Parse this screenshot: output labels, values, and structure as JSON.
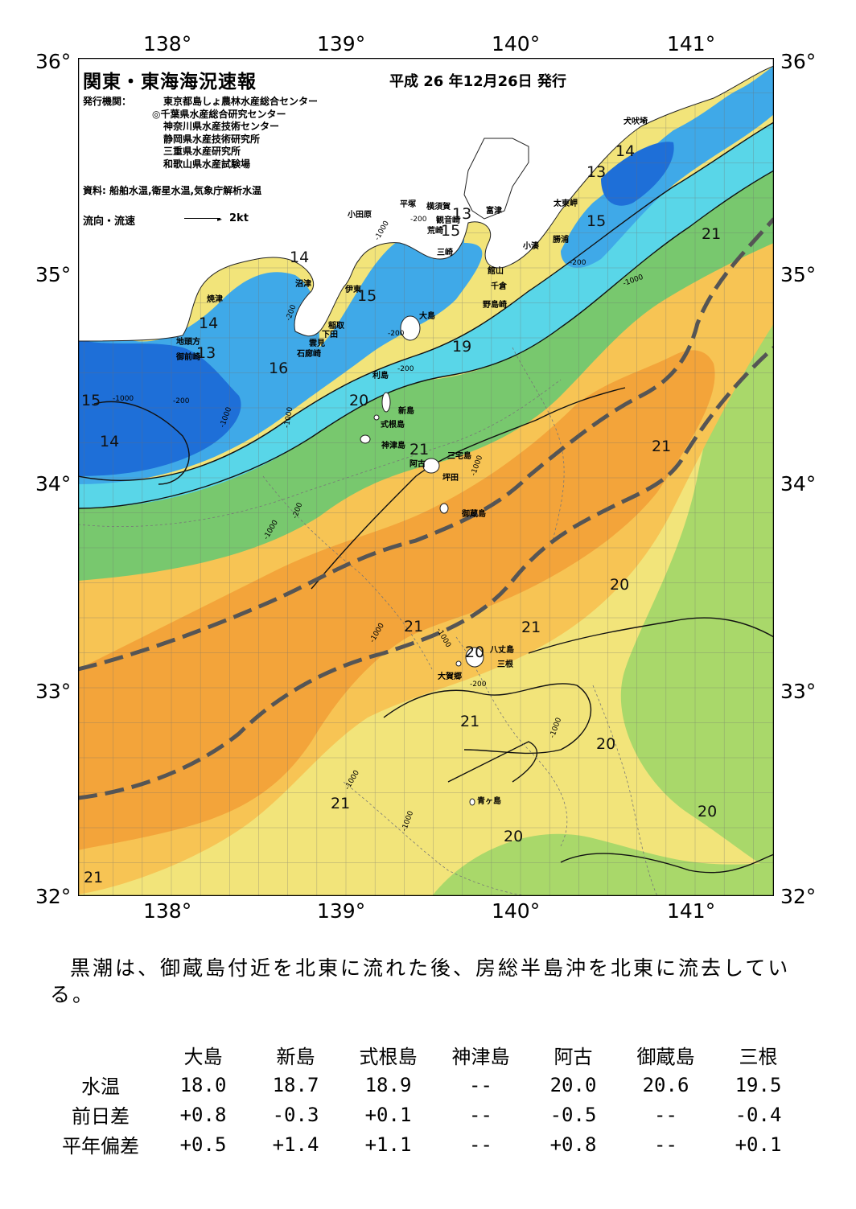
{
  "map": {
    "title": "関東・東海海況速報",
    "issue_date": "平成 26 年12月26日 発行",
    "agencies_header": "発行機関：",
    "agencies": [
      "東京都島しょ農林水産総合センター",
      "◎千葉県水産総合研究センター",
      "神奈川県水産技術センター",
      "静岡県水産技術研究所",
      "三重県水産研究所",
      "和歌山県水産試験場"
    ],
    "source": "資料: 船舶水温,衛星水温,気象庁解析水温",
    "flow_legend_label": "流向・流速",
    "flow_legend_unit": "2kt",
    "lon_labels": [
      "138°",
      "139°",
      "140°",
      "141°"
    ],
    "lat_labels": [
      "36°",
      "35°",
      "34°",
      "33°",
      "32°"
    ],
    "colors": {
      "very_warm": "#f3a43a",
      "warm": "#f7c454",
      "mild": "#f2e47a",
      "cool_green": "#a9d86a",
      "green": "#78c86e",
      "cyan": "#59d6e8",
      "light_blue": "#3fa9e8",
      "blue": "#1e6fd8",
      "land": "#ffffff",
      "kuroshio_axis": "#555555"
    },
    "place_names": [
      {
        "name": "犬吠埼"
      },
      {
        "name": "太東岬"
      },
      {
        "name": "勝浦"
      },
      {
        "name": "小湊"
      },
      {
        "name": "富津"
      },
      {
        "name": "横須賀"
      },
      {
        "name": "観音崎"
      },
      {
        "name": "平塚"
      },
      {
        "name": "小田原"
      },
      {
        "name": "荒崎"
      },
      {
        "name": "三崎"
      },
      {
        "name": "館山"
      },
      {
        "name": "千倉"
      },
      {
        "name": "野島崎"
      },
      {
        "name": "沼津"
      },
      {
        "name": "焼津"
      },
      {
        "name": "伊東"
      },
      {
        "name": "稲取"
      },
      {
        "name": "下田"
      },
      {
        "name": "雲見"
      },
      {
        "name": "石廊崎"
      },
      {
        "name": "地頭方"
      },
      {
        "name": "御前崎"
      },
      {
        "name": "大島"
      },
      {
        "name": "利島"
      },
      {
        "name": "新島"
      },
      {
        "name": "式根島"
      },
      {
        "name": "神津島"
      },
      {
        "name": "三宅島"
      },
      {
        "name": "阿古"
      },
      {
        "name": "坪田"
      },
      {
        "name": "御蔵島"
      },
      {
        "name": "八丈島"
      },
      {
        "name": "三根"
      },
      {
        "name": "大賀郷"
      },
      {
        "name": "青ヶ島"
      }
    ],
    "isotherm_labels": [
      {
        "value": "14"
      },
      {
        "value": "13"
      },
      {
        "value": "15"
      },
      {
        "value": "21"
      },
      {
        "value": "13"
      },
      {
        "value": "15"
      },
      {
        "value": "14"
      },
      {
        "value": "15"
      },
      {
        "value": "14"
      },
      {
        "value": "13"
      },
      {
        "value": "19"
      },
      {
        "value": "16"
      },
      {
        "value": "15"
      },
      {
        "value": "20"
      },
      {
        "value": "14"
      },
      {
        "value": "21"
      },
      {
        "value": "21"
      },
      {
        "value": "20"
      },
      {
        "value": "21"
      },
      {
        "value": "21"
      },
      {
        "value": "20"
      },
      {
        "value": "21"
      },
      {
        "value": "20"
      },
      {
        "value": "21"
      },
      {
        "value": "20"
      },
      {
        "value": "20"
      },
      {
        "value": "21"
      }
    ],
    "depth_labels": [
      {
        "value": "-1000"
      },
      {
        "value": "-200"
      },
      {
        "value": "-1000"
      },
      {
        "value": "-200"
      },
      {
        "value": "-200"
      },
      {
        "value": "-1000"
      },
      {
        "value": "-200"
      },
      {
        "value": "-1000"
      },
      {
        "value": "-200"
      },
      {
        "value": "-1000"
      },
      {
        "value": "-200"
      },
      {
        "value": "-1000"
      },
      {
        "value": "-200"
      },
      {
        "value": "-1000"
      },
      {
        "value": "-1000"
      },
      {
        "value": "-1000"
      },
      {
        "value": "-200"
      },
      {
        "value": "-1000"
      },
      {
        "value": "-1000"
      },
      {
        "value": "-1000"
      }
    ]
  },
  "summary": "黒潮は、御蔵島付近を北東に流れた後、房総半島沖を北東に流去している。",
  "table": {
    "columns": [
      "大島",
      "新島",
      "式根島",
      "神津島",
      "阿古",
      "御蔵島",
      "三根"
    ],
    "rows": [
      {
        "label": "水温",
        "values": [
          "18.0",
          "18.7",
          "18.9",
          "--",
          "20.0",
          "20.6",
          "19.5"
        ]
      },
      {
        "label": "前日差",
        "values": [
          "+0.8",
          "-0.3",
          "+0.1",
          "--",
          "-0.5",
          "--",
          "-0.4"
        ]
      },
      {
        "label": "平年偏差",
        "values": [
          "+0.5",
          "+1.4",
          "+1.1",
          "--",
          "+0.8",
          "--",
          "+0.1"
        ]
      }
    ]
  }
}
